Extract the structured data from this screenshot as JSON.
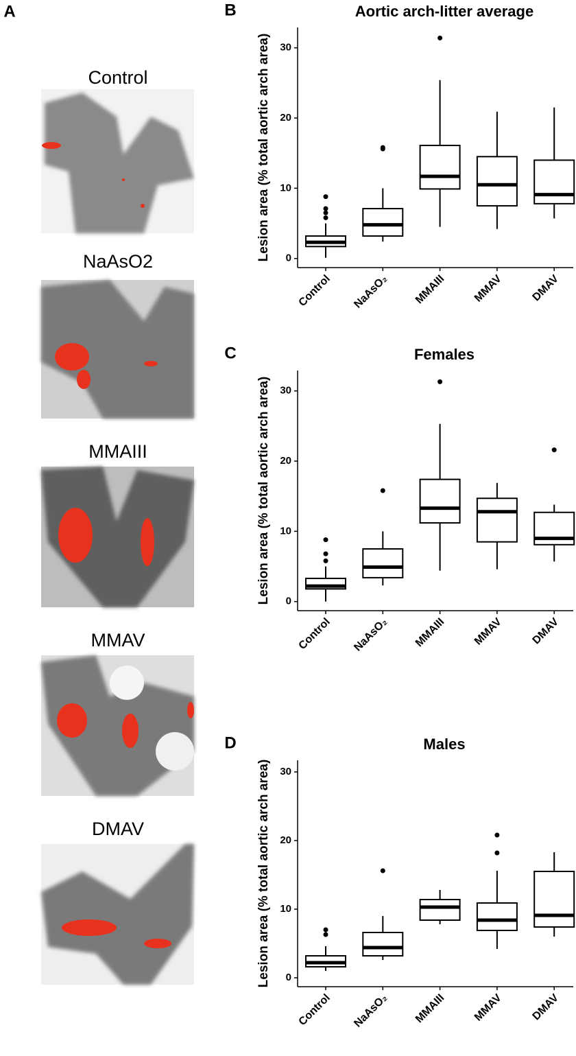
{
  "image_panel": {
    "panel_label": "A",
    "labels": [
      "Control",
      "NaAsO2",
      "MMAIII",
      "MMAV",
      "DMAV"
    ]
  },
  "chart_data": [
    {
      "type": "box",
      "panel_label": "B",
      "title": "Aortic arch-litter average",
      "y_label": "Lesion area (% total aortic arch area)",
      "categories": [
        "Control",
        "NaAsO₂",
        "MMAIII",
        "MMAV",
        "DMAV"
      ],
      "boxes": [
        {
          "min": 0.1,
          "q1": 1.7,
          "median": 2.3,
          "q3": 3.2,
          "max": 5.0,
          "outliers": [
            8.8,
            7.1,
            6.5,
            5.8
          ]
        },
        {
          "min": 2.4,
          "q1": 3.2,
          "median": 4.8,
          "q3": 7.1,
          "max": 10.0,
          "outliers": [
            15.8,
            15.6
          ]
        },
        {
          "min": 4.5,
          "q1": 9.9,
          "median": 11.7,
          "q3": 16.1,
          "max": 25.4,
          "outliers": [
            31.4
          ]
        },
        {
          "min": 4.2,
          "q1": 7.5,
          "median": 10.5,
          "q3": 14.5,
          "max": 20.9,
          "outliers": []
        },
        {
          "min": 5.7,
          "q1": 7.8,
          "median": 9.1,
          "q3": 14.0,
          "max": 21.5,
          "outliers": []
        }
      ],
      "ylim": [
        -1.3,
        32.9
      ],
      "yticks": [
        0,
        10,
        20,
        30
      ]
    },
    {
      "type": "box",
      "panel_label": "C",
      "title": "Females",
      "y_label": "Lesion area (% total aortic arch area)",
      "categories": [
        "Control",
        "NaAsO₂",
        "MMAIII",
        "MMAV",
        "DMAV"
      ],
      "boxes": [
        {
          "min": 0.0,
          "q1": 1.8,
          "median": 2.2,
          "q3": 3.3,
          "max": 5.0,
          "outliers": [
            8.8,
            6.8,
            5.8
          ]
        },
        {
          "min": 2.3,
          "q1": 3.4,
          "median": 4.9,
          "q3": 7.5,
          "max": 10.0,
          "outliers": [
            15.8
          ]
        },
        {
          "min": 4.4,
          "q1": 11.2,
          "median": 13.3,
          "q3": 17.4,
          "max": 25.3,
          "outliers": [
            31.3
          ]
        },
        {
          "min": 4.6,
          "q1": 8.5,
          "median": 12.8,
          "q3": 14.7,
          "max": 16.9,
          "outliers": []
        },
        {
          "min": 5.7,
          "q1": 8.1,
          "median": 9.0,
          "q3": 12.7,
          "max": 13.8,
          "outliers": [
            21.6
          ]
        }
      ],
      "ylim": [
        -1.3,
        32.9
      ],
      "yticks": [
        0,
        10,
        20,
        30
      ]
    },
    {
      "type": "box",
      "panel_label": "D",
      "title": "Males",
      "y_label": "Lesion area (% total aortic arch area)",
      "categories": [
        "Control",
        "NaAsO₂",
        "MMAIII",
        "MMAV",
        "DMAV"
      ],
      "boxes": [
        {
          "min": 1.0,
          "q1": 1.6,
          "median": 2.2,
          "q3": 3.2,
          "max": 4.6,
          "outliers": [
            7.0,
            6.3
          ]
        },
        {
          "min": 2.6,
          "q1": 3.2,
          "median": 4.4,
          "q3": 6.6,
          "max": 9.0,
          "outliers": [
            15.6
          ]
        },
        {
          "min": 7.8,
          "q1": 8.4,
          "median": 10.3,
          "q3": 11.4,
          "max": 12.8,
          "outliers": []
        },
        {
          "min": 4.2,
          "q1": 6.9,
          "median": 8.4,
          "q3": 10.9,
          "max": 15.6,
          "outliers": [
            20.8,
            18.2
          ]
        },
        {
          "min": 6.0,
          "q1": 7.4,
          "median": 9.1,
          "q3": 15.5,
          "max": 18.3,
          "outliers": []
        }
      ],
      "ylim": [
        -1.3,
        31.7
      ],
      "yticks": [
        0,
        10,
        20,
        30
      ]
    }
  ]
}
